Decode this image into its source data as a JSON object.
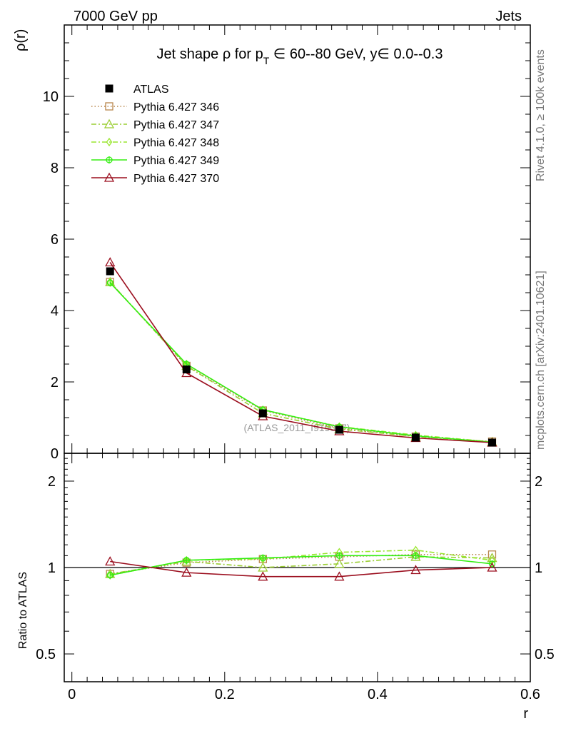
{
  "header": {
    "left": "7000 GeV pp",
    "right": "Jets"
  },
  "side_labels": {
    "rivet": "Rivet 4.1.0, ≥ 100k events",
    "mcplots": "mcplots.cern.ch [arXiv:2401.10621]"
  },
  "watermark": "(ATLAS_2011_I919017)",
  "colors": {
    "ATLAS": "#000000",
    "Pythia 6.427 346": "#b8864b",
    "Pythia 6.427 347": "#9acd32",
    "Pythia 6.427 348": "#99e62e",
    "Pythia 6.427 349": "#33ee11",
    "Pythia 6.427 370": "#9b0e1e"
  },
  "chart_data": [
    {
      "type": "line",
      "title_parts": {
        "prefix": "Jet shape ρ for p",
        "sub": "T",
        "suffix": " ∈ 60--80 GeV, y∈ 0.0--0.3"
      },
      "ylabel": "ρ(r)",
      "xlabel": "",
      "xlim": [
        -0.01,
        0.6
      ],
      "ylim": [
        0,
        12
      ],
      "yticks": [
        0,
        2,
        4,
        6,
        8,
        10
      ],
      "ytick_labels": [
        "0",
        "2",
        "4",
        "6",
        "8",
        "10"
      ],
      "x": [
        0.05,
        0.15,
        0.25,
        0.35,
        0.45,
        0.55
      ],
      "data": {
        "name": "ATLAS",
        "values": [
          5.1,
          2.35,
          1.12,
          0.66,
          0.44,
          0.3
        ]
      },
      "series": [
        {
          "name": "Pythia 6.427 346",
          "style": "dotted",
          "marker": "square-open",
          "values": [
            4.8,
            2.45,
            1.2,
            0.7,
            0.47,
            0.33
          ]
        },
        {
          "name": "Pythia 6.427 347",
          "style": "dashdot",
          "marker": "triangle-open",
          "values": [
            4.8,
            2.45,
            1.12,
            0.68,
            0.47,
            0.32
          ]
        },
        {
          "name": "Pythia 6.427 348",
          "style": "dashdot",
          "marker": "diamond-open",
          "values": [
            4.78,
            2.5,
            1.22,
            0.75,
            0.51,
            0.32
          ]
        },
        {
          "name": "Pythia 6.427 349",
          "style": "solid",
          "marker": "circle-cross",
          "values": [
            4.78,
            2.5,
            1.22,
            0.74,
            0.49,
            0.31
          ]
        },
        {
          "name": "Pythia 6.427 370",
          "style": "solid",
          "marker": "triangle-open",
          "values": [
            5.35,
            2.25,
            1.04,
            0.62,
            0.43,
            0.3
          ]
        }
      ],
      "legend": [
        "ATLAS",
        "Pythia 6.427 346",
        "Pythia 6.427 347",
        "Pythia 6.427 348",
        "Pythia 6.427 349",
        "Pythia 6.427 370"
      ]
    },
    {
      "type": "line",
      "title": "",
      "ylabel": "Ratio to ATLAS",
      "xlabel": "r",
      "scale": "log",
      "xlim": [
        -0.01,
        0.6
      ],
      "ylim": [
        0.4,
        2.5
      ],
      "yticks": [
        0.5,
        1,
        2
      ],
      "ytick_labels": [
        "0.5",
        "1",
        "2"
      ],
      "xticks": [
        0,
        0.2,
        0.4,
        0.6
      ],
      "xtick_labels": [
        "0",
        "0.2",
        "0.4",
        "0.6"
      ],
      "reference": 1,
      "x": [
        0.05,
        0.15,
        0.25,
        0.35,
        0.45,
        0.55
      ],
      "series": [
        {
          "name": "Pythia 6.427 346",
          "values": [
            0.95,
            1.04,
            1.07,
            1.09,
            1.11,
            1.11
          ]
        },
        {
          "name": "Pythia 6.427 347",
          "values": [
            0.95,
            1.05,
            1.0,
            1.03,
            1.09,
            1.08
          ]
        },
        {
          "name": "Pythia 6.427 348",
          "values": [
            0.94,
            1.06,
            1.07,
            1.13,
            1.15,
            1.06
          ]
        },
        {
          "name": "Pythia 6.427 349",
          "values": [
            0.94,
            1.06,
            1.08,
            1.1,
            1.1,
            1.03
          ]
        },
        {
          "name": "Pythia 6.427 370",
          "values": [
            1.05,
            0.96,
            0.93,
            0.93,
            0.98,
            1.0
          ]
        }
      ]
    }
  ]
}
